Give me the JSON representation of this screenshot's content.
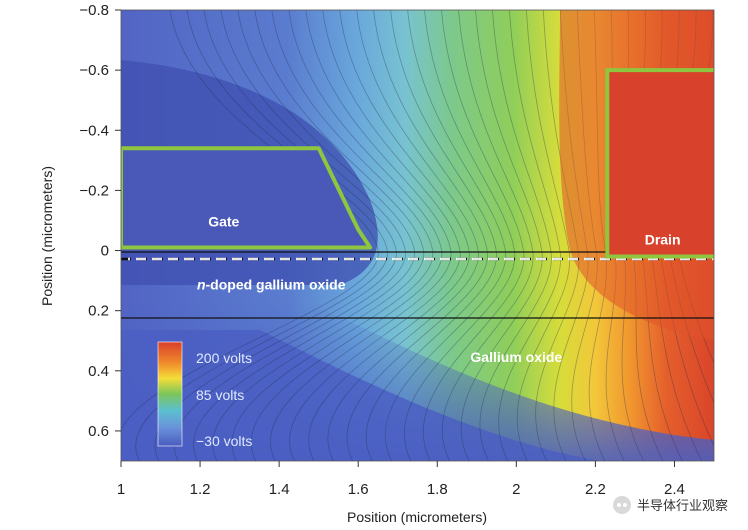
{
  "chart_data": {
    "type": "heatmap",
    "title": "",
    "xlabel": "Position (micrometers)",
    "ylabel": "Position (micrometers)",
    "xlim": [
      1.0,
      2.5
    ],
    "ylim": [
      -0.8,
      0.7
    ],
    "y_inverted": true,
    "xticks": [
      "1",
      "1.2",
      "1.4",
      "1.6",
      "1.8",
      "2",
      "2.2",
      "2.4"
    ],
    "xtick_values": [
      1.0,
      1.2,
      1.4,
      1.6,
      1.8,
      2.0,
      2.2,
      2.4
    ],
    "yticks": [
      "−0.8",
      "−0.6",
      "−0.4",
      "−0.2",
      "0",
      "0.2",
      "0.4",
      "0.6"
    ],
    "ytick_values": [
      -0.8,
      -0.6,
      -0.4,
      -0.2,
      0.0,
      0.2,
      0.4,
      0.6
    ],
    "colorbar": {
      "labels": [
        "200 volts",
        "85 volts",
        "−30 volts"
      ],
      "values": [
        200,
        85,
        -30
      ],
      "colors": [
        "#d9402a",
        "#f08a2c",
        "#f4dd3a",
        "#7cc65a",
        "#5bbfd0",
        "#6a93da",
        "#4a5cc0"
      ]
    },
    "annotations": [
      {
        "text": "Gate",
        "x": 1.26,
        "y": -0.08
      },
      {
        "text": "Drain",
        "x": 2.37,
        "y": -0.02
      },
      {
        "text": "n-doped gallium oxide",
        "x": 1.38,
        "y": 0.13
      },
      {
        "text": "Gallium oxide",
        "x": 2.0,
        "y": 0.37
      }
    ],
    "gate_outline": [
      [
        1.0,
        -0.34
      ],
      [
        1.5,
        -0.34
      ],
      [
        1.6,
        -0.07
      ],
      [
        1.63,
        -0.01
      ],
      [
        1.0,
        -0.01
      ]
    ],
    "drain_outline": [
      [
        2.23,
        0.02
      ],
      [
        2.23,
        -0.6
      ],
      [
        2.5,
        -0.6
      ]
    ],
    "interfaces": [
      {
        "y": 0.0,
        "style": "solid"
      },
      {
        "y": 0.025,
        "style": "dashed"
      },
      {
        "y": 0.22,
        "style": "solid"
      }
    ]
  },
  "watermark": {
    "text": "半导体行业观察"
  }
}
